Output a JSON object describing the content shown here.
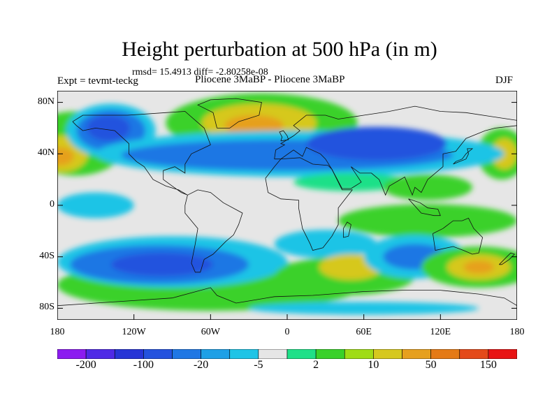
{
  "title": "Height perturbation at 500 hPa (in m)",
  "stats": "rmsd= 15.4913 diff= -2.80258e-08",
  "expt": "Expt = tevmt-teckg",
  "comparison": "Pliocene   3MaBP - Pliocene   3MaBP",
  "season": "DJF",
  "lat_ticks": [
    {
      "label": "80N",
      "lat": 80
    },
    {
      "label": "40N",
      "lat": 40
    },
    {
      "label": "0",
      "lat": 0
    },
    {
      "label": "40S",
      "lat": -40
    },
    {
      "label": "80S",
      "lat": -80
    }
  ],
  "lon_ticks": [
    {
      "label": "180",
      "lon": -180
    },
    {
      "label": "120W",
      "lon": -120
    },
    {
      "label": "60W",
      "lon": -60
    },
    {
      "label": "0",
      "lon": 0
    },
    {
      "label": "60E",
      "lon": 60
    },
    {
      "label": "120E",
      "lon": 120
    },
    {
      "label": "180",
      "lon": 180
    }
  ],
  "colorbar": {
    "colors": [
      "#8c1cf0",
      "#4f2ae6",
      "#2735d6",
      "#2452de",
      "#1f77e4",
      "#1ea0e6",
      "#1ec4e6",
      "#e6e6e6",
      "#1fe088",
      "#3ad12a",
      "#a0dc16",
      "#d6c81e",
      "#e6a01e",
      "#e47a16",
      "#e44a1a",
      "#e81414"
    ],
    "labels": [
      {
        "text": "-200",
        "index": 1
      },
      {
        "text": "-100",
        "index": 3
      },
      {
        "text": "-20",
        "index": 5
      },
      {
        "text": "-5",
        "index": 7
      },
      {
        "text": "2",
        "index": 9
      },
      {
        "text": "10",
        "index": 11
      },
      {
        "text": "50",
        "index": 13
      },
      {
        "text": "150",
        "index": 15
      }
    ]
  },
  "features": [
    {
      "type": "positive",
      "lon": -166,
      "lat": 48,
      "w": 80,
      "h": 50,
      "color": "#3ad12a"
    },
    {
      "type": "positive",
      "lon": -176,
      "lat": 40,
      "w": 40,
      "h": 28,
      "color": "#d6c81e"
    },
    {
      "type": "positive",
      "lon": -178,
      "lat": 38,
      "w": 22,
      "h": 14,
      "color": "#e6a01e"
    },
    {
      "type": "positive",
      "lon": 168,
      "lat": 40,
      "w": 38,
      "h": 40,
      "color": "#3ad12a"
    },
    {
      "type": "positive",
      "lon": 170,
      "lat": 40,
      "w": 20,
      "h": 24,
      "color": "#d6c81e"
    },
    {
      "type": "negative",
      "lon": -138,
      "lat": 58,
      "w": 70,
      "h": 42,
      "color": "#1ec4e6"
    },
    {
      "type": "negative",
      "lon": -138,
      "lat": 58,
      "w": 54,
      "h": 32,
      "color": "#1f77e4"
    },
    {
      "type": "negative",
      "lon": -140,
      "lat": 60,
      "w": 34,
      "h": 20,
      "color": "#2452de"
    },
    {
      "type": "positive",
      "lon": -20,
      "lat": 64,
      "w": 150,
      "h": 46,
      "color": "#3ad12a"
    },
    {
      "type": "positive",
      "lon": -22,
      "lat": 64,
      "w": 90,
      "h": 30,
      "color": "#d6c81e"
    },
    {
      "type": "positive",
      "lon": -26,
      "lat": 62,
      "w": 46,
      "h": 16,
      "color": "#e6a01e"
    },
    {
      "type": "negative",
      "lon": 10,
      "lat": 40,
      "w": 320,
      "h": 36,
      "color": "#1ec4e6"
    },
    {
      "type": "negative",
      "lon": 0,
      "lat": 39,
      "w": 260,
      "h": 24,
      "color": "#1f77e4"
    },
    {
      "type": "negative",
      "lon": 70,
      "lat": 48,
      "w": 110,
      "h": 26,
      "color": "#2452de"
    },
    {
      "type": "positive",
      "lon": 50,
      "lat": 18,
      "w": 90,
      "h": 14,
      "color": "#1fe088"
    },
    {
      "type": "positive",
      "lon": 110,
      "lat": 14,
      "w": 70,
      "h": 20,
      "color": "#3ad12a"
    },
    {
      "type": "negative",
      "lon": -150,
      "lat": 0,
      "w": 60,
      "h": 20,
      "color": "#1ec4e6"
    },
    {
      "type": "positive",
      "lon": 110,
      "lat": -12,
      "w": 140,
      "h": 26,
      "color": "#3ad12a"
    },
    {
      "type": "positive",
      "lon": -60,
      "lat": -62,
      "w": 240,
      "h": 40,
      "color": "#3ad12a"
    },
    {
      "type": "negative",
      "lon": -90,
      "lat": -44,
      "w": 180,
      "h": 40,
      "color": "#1ec4e6"
    },
    {
      "type": "negative",
      "lon": -100,
      "lat": -46,
      "w": 140,
      "h": 30,
      "color": "#1f77e4"
    },
    {
      "type": "negative",
      "lon": -98,
      "lat": -46,
      "w": 80,
      "h": 18,
      "color": "#2452de"
    },
    {
      "type": "negative",
      "lon": 30,
      "lat": -30,
      "w": 80,
      "h": 22,
      "color": "#1ec4e6"
    },
    {
      "type": "positive",
      "lon": 45,
      "lat": -55,
      "w": 110,
      "h": 30,
      "color": "#3ad12a"
    },
    {
      "type": "positive",
      "lon": 50,
      "lat": -48,
      "w": 50,
      "h": 20,
      "color": "#d6c81e"
    },
    {
      "type": "negative",
      "lon": 100,
      "lat": -40,
      "w": 80,
      "h": 34,
      "color": "#1ec4e6"
    },
    {
      "type": "negative",
      "lon": 100,
      "lat": -40,
      "w": 50,
      "h": 20,
      "color": "#1f77e4"
    },
    {
      "type": "positive",
      "lon": 150,
      "lat": -48,
      "w": 90,
      "h": 32,
      "color": "#3ad12a"
    },
    {
      "type": "positive",
      "lon": 150,
      "lat": -48,
      "w": 50,
      "h": 20,
      "color": "#d6c81e"
    },
    {
      "type": "positive",
      "lon": 150,
      "lat": -48,
      "w": 24,
      "h": 10,
      "color": "#e6a01e"
    },
    {
      "type": "negative",
      "lon": 60,
      "lat": -80,
      "w": 180,
      "h": 10,
      "color": "#1ec4e6"
    }
  ],
  "coastlines": [
    {
      "name": "north-america",
      "points": [
        [
          -168,
          65
        ],
        [
          -160,
          70
        ],
        [
          -140,
          70
        ],
        [
          -125,
          70
        ],
        [
          -95,
          72
        ],
        [
          -80,
          73
        ],
        [
          -65,
          60
        ],
        [
          -60,
          47
        ],
        [
          -75,
          40
        ],
        [
          -80,
          32
        ],
        [
          -80,
          25
        ],
        [
          -88,
          30
        ],
        [
          -97,
          27
        ],
        [
          -97,
          20
        ],
        [
          -90,
          15
        ],
        [
          -83,
          10
        ],
        [
          -78,
          8
        ],
        [
          -85,
          12
        ],
        [
          -95,
          15
        ],
        [
          -105,
          20
        ],
        [
          -112,
          30
        ],
        [
          -118,
          34
        ],
        [
          -124,
          40
        ],
        [
          -124,
          48
        ],
        [
          -135,
          58
        ],
        [
          -150,
          60
        ],
        [
          -160,
          58
        ],
        [
          -165,
          62
        ],
        [
          -168,
          65
        ]
      ]
    },
    {
      "name": "greenland",
      "points": [
        [
          -55,
          60
        ],
        [
          -45,
          60
        ],
        [
          -38,
          65
        ],
        [
          -22,
          70
        ],
        [
          -20,
          80
        ],
        [
          -40,
          83
        ],
        [
          -60,
          82
        ],
        [
          -70,
          78
        ],
        [
          -58,
          72
        ],
        [
          -55,
          60
        ]
      ]
    },
    {
      "name": "south-america",
      "points": [
        [
          -78,
          8
        ],
        [
          -70,
          12
        ],
        [
          -60,
          10
        ],
        [
          -50,
          2
        ],
        [
          -35,
          -6
        ],
        [
          -38,
          -15
        ],
        [
          -42,
          -23
        ],
        [
          -48,
          -28
        ],
        [
          -58,
          -38
        ],
        [
          -65,
          -42
        ],
        [
          -68,
          -52
        ],
        [
          -72,
          -52
        ],
        [
          -75,
          -45
        ],
        [
          -72,
          -30
        ],
        [
          -70,
          -18
        ],
        [
          -80,
          -6
        ],
        [
          -80,
          0
        ],
        [
          -78,
          8
        ]
      ]
    },
    {
      "name": "africa",
      "points": [
        [
          -17,
          21
        ],
        [
          -10,
          30
        ],
        [
          -5,
          36
        ],
        [
          10,
          37
        ],
        [
          20,
          32
        ],
        [
          32,
          31
        ],
        [
          35,
          28
        ],
        [
          43,
          12
        ],
        [
          51,
          12
        ],
        [
          40,
          -2
        ],
        [
          40,
          -15
        ],
        [
          35,
          -24
        ],
        [
          28,
          -33
        ],
        [
          20,
          -35
        ],
        [
          18,
          -30
        ],
        [
          12,
          -18
        ],
        [
          9,
          -2
        ],
        [
          9,
          4
        ],
        [
          -5,
          5
        ],
        [
          -15,
          10
        ],
        [
          -17,
          21
        ]
      ]
    },
    {
      "name": "eurasia",
      "points": [
        [
          -10,
          36
        ],
        [
          -9,
          43
        ],
        [
          -2,
          47
        ],
        [
          -5,
          48
        ],
        [
          5,
          54
        ],
        [
          10,
          58
        ],
        [
          5,
          62
        ],
        [
          15,
          70
        ],
        [
          30,
          70
        ],
        [
          40,
          67
        ],
        [
          60,
          70
        ],
        [
          80,
          73
        ],
        [
          100,
          77
        ],
        [
          120,
          73
        ],
        [
          140,
          72
        ],
        [
          160,
          69
        ],
        [
          180,
          66
        ],
        [
          180,
          62
        ],
        [
          163,
          60
        ],
        [
          155,
          58
        ],
        [
          140,
          52
        ],
        [
          132,
          42
        ],
        [
          122,
          40
        ],
        [
          122,
          30
        ],
        [
          110,
          20
        ],
        [
          105,
          10
        ],
        [
          100,
          14
        ],
        [
          98,
          8
        ],
        [
          92,
          22
        ],
        [
          80,
          15
        ],
        [
          77,
          8
        ],
        [
          72,
          20
        ],
        [
          66,
          25
        ],
        [
          57,
          25
        ],
        [
          50,
          30
        ],
        [
          58,
          18
        ],
        [
          50,
          13
        ],
        [
          43,
          13
        ],
        [
          35,
          28
        ],
        [
          30,
          36
        ],
        [
          26,
          40
        ],
        [
          15,
          45
        ],
        [
          12,
          38
        ],
        [
          5,
          43
        ],
        [
          -5,
          36
        ],
        [
          -10,
          36
        ]
      ]
    },
    {
      "name": "australia",
      "points": [
        [
          114,
          -22
        ],
        [
          122,
          -18
        ],
        [
          130,
          -12
        ],
        [
          137,
          -12
        ],
        [
          142,
          -10
        ],
        [
          146,
          -18
        ],
        [
          153,
          -25
        ],
        [
          150,
          -37
        ],
        [
          145,
          -38
        ],
        [
          138,
          -35
        ],
        [
          130,
          -32
        ],
        [
          116,
          -35
        ],
        [
          114,
          -22
        ]
      ]
    },
    {
      "name": "antarctica",
      "points": [
        [
          -180,
          -78
        ],
        [
          -150,
          -76
        ],
        [
          -120,
          -74
        ],
        [
          -90,
          -72
        ],
        [
          -60,
          -64
        ],
        [
          -55,
          -70
        ],
        [
          -40,
          -76
        ],
        [
          -10,
          -71
        ],
        [
          20,
          -70
        ],
        [
          60,
          -67
        ],
        [
          90,
          -66
        ],
        [
          120,
          -66
        ],
        [
          150,
          -69
        ],
        [
          170,
          -72
        ],
        [
          180,
          -78
        ]
      ]
    },
    {
      "name": "japan",
      "points": [
        [
          130,
          32
        ],
        [
          135,
          34
        ],
        [
          140,
          36
        ],
        [
          142,
          40
        ],
        [
          141,
          44
        ],
        [
          145,
          44
        ],
        [
          140,
          40
        ],
        [
          137,
          36
        ],
        [
          132,
          34
        ],
        [
          130,
          32
        ]
      ]
    },
    {
      "name": "british-isles",
      "points": [
        [
          -5,
          50
        ],
        [
          1,
          51
        ],
        [
          0,
          54
        ],
        [
          -3,
          58
        ],
        [
          -6,
          57
        ],
        [
          -4,
          53
        ],
        [
          -5,
          50
        ]
      ]
    },
    {
      "name": "madagascar",
      "points": [
        [
          44,
          -25
        ],
        [
          48,
          -24
        ],
        [
          50,
          -15
        ],
        [
          47,
          -13
        ],
        [
          44,
          -18
        ],
        [
          44,
          -25
        ]
      ]
    },
    {
      "name": "new-zealand",
      "points": [
        [
          166,
          -46
        ],
        [
          172,
          -40
        ],
        [
          175,
          -37
        ],
        [
          178,
          -38
        ],
        [
          174,
          -42
        ],
        [
          168,
          -46
        ],
        [
          166,
          -46
        ]
      ]
    },
    {
      "name": "indonesia",
      "points": [
        [
          95,
          5
        ],
        [
          105,
          -6
        ],
        [
          115,
          -8
        ],
        [
          120,
          -8
        ],
        [
          118,
          -3
        ],
        [
          110,
          -2
        ],
        [
          104,
          2
        ],
        [
          95,
          5
        ]
      ]
    }
  ]
}
